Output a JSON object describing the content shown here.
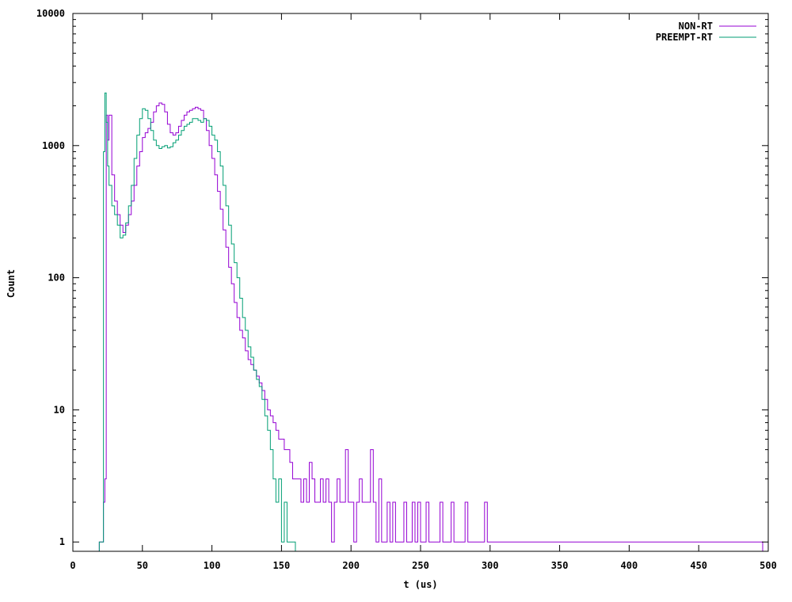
{
  "chart_data": {
    "type": "line",
    "title": "",
    "xlabel": "t (us)",
    "ylabel": "Count",
    "xlim": [
      0,
      500
    ],
    "ylim": [
      0.85,
      10000
    ],
    "yscale": "log",
    "xticks": [
      0,
      50,
      100,
      150,
      200,
      250,
      300,
      350,
      400,
      450,
      500
    ],
    "yticks": [
      1,
      10,
      100,
      1000,
      10000
    ],
    "grid": false,
    "legend_position": "top-right",
    "series": [
      {
        "name": "NON-RT",
        "color": "#9400d3",
        "style": "steps",
        "x": [
          19,
          21,
          22,
          23,
          24,
          25,
          26,
          28,
          30,
          32,
          34,
          36,
          38,
          40,
          42,
          44,
          46,
          48,
          50,
          52,
          54,
          56,
          58,
          60,
          62,
          64,
          66,
          68,
          70,
          72,
          74,
          76,
          78,
          80,
          82,
          84,
          86,
          88,
          90,
          92,
          94,
          96,
          98,
          100,
          102,
          104,
          106,
          108,
          110,
          112,
          114,
          116,
          118,
          120,
          122,
          124,
          126,
          128,
          130,
          132,
          134,
          136,
          138,
          140,
          142,
          144,
          146,
          148,
          150,
          152,
          154,
          156,
          158,
          160,
          162,
          164,
          166,
          168,
          170,
          172,
          174,
          176,
          178,
          180,
          182,
          184,
          186,
          188,
          190,
          192,
          194,
          196,
          198,
          200,
          202,
          204,
          206,
          208,
          210,
          212,
          214,
          216,
          218,
          220,
          222,
          224,
          226,
          228,
          230,
          232,
          234,
          236,
          238,
          240,
          242,
          244,
          246,
          248,
          250,
          252,
          254,
          256,
          258,
          260,
          262,
          264,
          266,
          268,
          270,
          272,
          274,
          276,
          278,
          280,
          282,
          284,
          286,
          288,
          290,
          292,
          294,
          296,
          298,
          300,
          304,
          308,
          316,
          320,
          326,
          334,
          340,
          346,
          356,
          362,
          368,
          376,
          396,
          412,
          448,
          458,
          494
        ],
        "y": [
          1,
          1,
          2,
          3,
          1700,
          1100,
          1700,
          600,
          380,
          300,
          250,
          220,
          250,
          300,
          380,
          500,
          700,
          900,
          1150,
          1250,
          1350,
          1500,
          1800,
          2000,
          2100,
          2050,
          1800,
          1450,
          1250,
          1200,
          1250,
          1400,
          1550,
          1700,
          1800,
          1850,
          1900,
          1950,
          1900,
          1850,
          1600,
          1300,
          1000,
          800,
          600,
          450,
          330,
          230,
          170,
          120,
          90,
          65,
          50,
          40,
          35,
          28,
          24,
          22,
          20,
          18,
          16,
          14,
          12,
          10,
          9,
          8,
          7,
          6,
          6,
          5,
          5,
          4,
          3,
          3,
          3,
          2,
          3,
          2,
          4,
          3,
          2,
          2,
          3,
          2,
          3,
          2,
          1,
          2,
          3,
          2,
          2,
          5,
          2,
          2,
          1,
          2,
          3,
          2,
          2,
          2,
          5,
          2,
          1,
          3,
          1,
          1,
          2,
          1,
          2,
          1,
          1,
          1,
          2,
          1,
          1,
          2,
          1,
          2,
          1,
          1,
          2,
          1,
          1,
          1,
          1,
          2,
          1,
          1,
          1,
          2,
          1,
          1,
          1,
          1,
          2,
          1,
          1,
          1,
          1,
          1,
          1,
          2,
          1,
          1,
          1,
          1,
          1,
          1,
          1,
          1,
          1,
          1,
          1,
          1,
          1,
          1,
          1,
          1,
          1,
          1,
          1
        ]
      },
      {
        "name": "PREEMPT-RT",
        "color": "#009e73",
        "style": "steps",
        "x": [
          19,
          21,
          22,
          23,
          24,
          25,
          26,
          28,
          30,
          32,
          34,
          36,
          38,
          40,
          42,
          44,
          46,
          48,
          50,
          52,
          54,
          56,
          58,
          60,
          62,
          64,
          66,
          68,
          70,
          72,
          74,
          76,
          78,
          80,
          82,
          84,
          86,
          88,
          90,
          92,
          94,
          96,
          98,
          100,
          102,
          104,
          106,
          108,
          110,
          112,
          114,
          116,
          118,
          120,
          122,
          124,
          126,
          128,
          130,
          132,
          134,
          136,
          138,
          140,
          142,
          144,
          146,
          148,
          150,
          152,
          154,
          156,
          158
        ],
        "y": [
          1,
          1,
          900,
          2500,
          1500,
          700,
          500,
          350,
          300,
          250,
          200,
          210,
          260,
          350,
          500,
          800,
          1200,
          1600,
          1900,
          1850,
          1600,
          1300,
          1100,
          1000,
          950,
          980,
          1000,
          960,
          980,
          1050,
          1100,
          1200,
          1300,
          1400,
          1450,
          1500,
          1600,
          1600,
          1550,
          1500,
          1600,
          1550,
          1400,
          1200,
          1100,
          900,
          700,
          500,
          350,
          250,
          180,
          130,
          100,
          70,
          50,
          40,
          30,
          25,
          20,
          17,
          15,
          12,
          9,
          7,
          5,
          3,
          2,
          3,
          1,
          2,
          1,
          1,
          1
        ]
      }
    ]
  }
}
